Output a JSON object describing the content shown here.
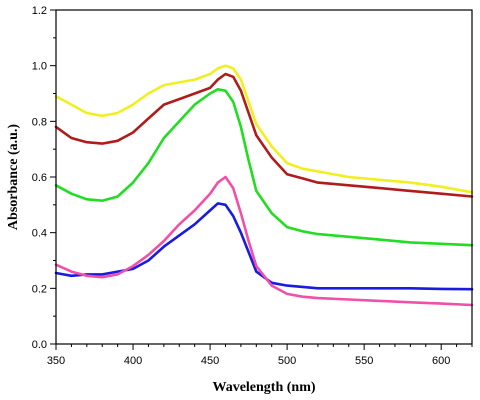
{
  "chart_data": {
    "type": "line",
    "title": "",
    "xlabel": "Wavelength (nm)",
    "ylabel": "Absorbance (a.u.)",
    "xlim": [
      350,
      620
    ],
    "ylim": [
      0.0,
      1.2
    ],
    "xticks": [
      350,
      400,
      450,
      500,
      550,
      600
    ],
    "yticks": [
      0.0,
      0.2,
      0.4,
      0.6,
      0.8,
      1.0,
      1.2
    ],
    "xtick_labels": [
      "350",
      "400",
      "450",
      "500",
      "550",
      "600"
    ],
    "ytick_labels": [
      "0.0",
      "0.2",
      "0.4",
      "0.6",
      "0.8",
      "1.0",
      "1.2"
    ],
    "grid": false,
    "legend": "none",
    "series": [
      {
        "color": "#f0f020",
        "x": [
          350,
          360,
          370,
          380,
          390,
          400,
          410,
          420,
          430,
          440,
          450,
          455,
          460,
          465,
          470,
          475,
          480,
          490,
          500,
          510,
          520,
          540,
          560,
          580,
          600,
          620
        ],
        "y": [
          0.89,
          0.86,
          0.83,
          0.82,
          0.83,
          0.86,
          0.9,
          0.93,
          0.94,
          0.95,
          0.97,
          0.99,
          1.0,
          0.99,
          0.95,
          0.87,
          0.79,
          0.71,
          0.65,
          0.63,
          0.62,
          0.6,
          0.59,
          0.58,
          0.565,
          0.545
        ]
      },
      {
        "color": "#b01c1c",
        "x": [
          350,
          360,
          370,
          380,
          390,
          400,
          410,
          420,
          430,
          440,
          450,
          455,
          460,
          465,
          470,
          475,
          480,
          490,
          500,
          510,
          520,
          540,
          560,
          580,
          600,
          620
        ],
        "y": [
          0.78,
          0.74,
          0.725,
          0.72,
          0.73,
          0.76,
          0.81,
          0.86,
          0.88,
          0.9,
          0.92,
          0.95,
          0.97,
          0.96,
          0.91,
          0.83,
          0.75,
          0.67,
          0.61,
          0.595,
          0.58,
          0.57,
          0.56,
          0.55,
          0.54,
          0.53
        ]
      },
      {
        "color": "#22dd22",
        "x": [
          350,
          360,
          370,
          380,
          390,
          400,
          410,
          420,
          430,
          440,
          450,
          455,
          460,
          465,
          470,
          475,
          480,
          490,
          500,
          510,
          520,
          540,
          560,
          580,
          600,
          620
        ],
        "y": [
          0.57,
          0.54,
          0.52,
          0.515,
          0.53,
          0.58,
          0.65,
          0.74,
          0.8,
          0.86,
          0.9,
          0.915,
          0.91,
          0.87,
          0.78,
          0.66,
          0.55,
          0.47,
          0.42,
          0.405,
          0.395,
          0.385,
          0.375,
          0.365,
          0.36,
          0.355
        ]
      },
      {
        "color": "#1a1ae0",
        "x": [
          350,
          360,
          370,
          380,
          390,
          400,
          410,
          420,
          430,
          440,
          450,
          455,
          460,
          465,
          470,
          475,
          480,
          490,
          500,
          510,
          520,
          540,
          560,
          580,
          600,
          620
        ],
        "y": [
          0.255,
          0.245,
          0.25,
          0.25,
          0.26,
          0.27,
          0.3,
          0.35,
          0.39,
          0.43,
          0.48,
          0.505,
          0.5,
          0.46,
          0.4,
          0.33,
          0.26,
          0.22,
          0.21,
          0.205,
          0.2,
          0.2,
          0.2,
          0.2,
          0.198,
          0.197
        ]
      },
      {
        "color": "#f050a8",
        "x": [
          350,
          360,
          370,
          380,
          390,
          400,
          410,
          420,
          430,
          440,
          450,
          455,
          460,
          465,
          470,
          475,
          480,
          490,
          500,
          510,
          520,
          540,
          560,
          580,
          600,
          620
        ],
        "y": [
          0.285,
          0.26,
          0.245,
          0.24,
          0.25,
          0.28,
          0.32,
          0.37,
          0.43,
          0.48,
          0.54,
          0.58,
          0.6,
          0.56,
          0.47,
          0.37,
          0.28,
          0.21,
          0.18,
          0.17,
          0.165,
          0.16,
          0.155,
          0.15,
          0.145,
          0.14
        ]
      }
    ]
  }
}
